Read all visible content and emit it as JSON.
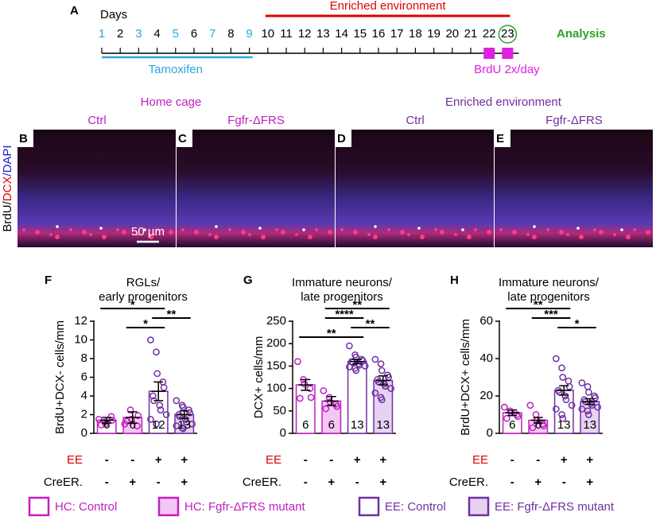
{
  "timeline": {
    "letter": "A",
    "days_label": "Days",
    "days": [
      1,
      2,
      3,
      4,
      5,
      6,
      7,
      8,
      9,
      10,
      11,
      12,
      13,
      14,
      15,
      16,
      17,
      18,
      19,
      20,
      21,
      22,
      23
    ],
    "day_colors": [
      "#29a8e0",
      "#000",
      "#29a8e0",
      "#000",
      "#29a8e0",
      "#000",
      "#29a8e0",
      "#000",
      "#29a8e0",
      "#000",
      "#000",
      "#000",
      "#000",
      "#000",
      "#000",
      "#000",
      "#000",
      "#000",
      "#000",
      "#000",
      "#000",
      "#000",
      "#000"
    ],
    "enriched_label": "Enriched environment",
    "tamoxifen_label": "Tamoxifen",
    "brdu_label": "BrdU 2x/day",
    "analysis_label": "Analysis"
  },
  "images": {
    "groups": [
      {
        "label": "Home cage",
        "color": "#c020c0"
      },
      {
        "label": "Enriched environment",
        "color": "#7030a0"
      }
    ],
    "panels": [
      {
        "letter": "B",
        "label": "Ctrl",
        "color": "#c020c0"
      },
      {
        "letter": "C",
        "label": "Fgfr-ΔFRS",
        "color": "#c020c0"
      },
      {
        "letter": "D",
        "label": "Ctrl",
        "color": "#7030a0"
      },
      {
        "letter": "E",
        "label": "Fgfr-ΔFRS",
        "color": "#7030a0"
      }
    ],
    "stain": [
      {
        "text": "BrdU/",
        "color": "#000"
      },
      {
        "text": "DCX",
        "color": "#e00000"
      },
      {
        "text": "/DAPI",
        "color": "#1a1ad0"
      }
    ],
    "scale_bar": "50 µm"
  },
  "chart_data": [
    {
      "type": "bar",
      "letter": "F",
      "title": [
        "RGLs/",
        "early progenitors"
      ],
      "y_label": "BrdU+DCX- cells/mm",
      "ylim": [
        0,
        12
      ],
      "yticks": [
        0,
        2,
        4,
        6,
        8,
        10,
        12
      ],
      "values": [
        1.4,
        1.7,
        4.5,
        2.0
      ],
      "errors": [
        0.3,
        0.6,
        1.0,
        0.4
      ],
      "points": [
        [
          1.5,
          1.2,
          1.0,
          1.8,
          1.4,
          0.9
        ],
        [
          1.0,
          2.5,
          1.5,
          0.8,
          1.9,
          1.3
        ],
        [
          10.0,
          8.7,
          6.4,
          5.5,
          4.9,
          4.0,
          3.5,
          3.0,
          2.5,
          2.0,
          1.5,
          1.0
        ],
        [
          3.5,
          3.0,
          2.8,
          2.5,
          2.2,
          2.0,
          1.8,
          1.5,
          1.2,
          1.0,
          0.8,
          0.6,
          0.5
        ]
      ],
      "n_labels": [
        "6",
        "6",
        "12",
        "13"
      ],
      "significance": [
        {
          "pair": [
            0,
            2
          ],
          "label": "*"
        },
        {
          "pair": [
            2,
            3
          ],
          "label": "**"
        },
        {
          "pair": [
            1,
            2
          ],
          "label": "*"
        }
      ],
      "conditions": [
        {
          "label": "EE",
          "color": "#e00000",
          "marks": [
            "-",
            "-",
            "+",
            "+"
          ]
        },
        {
          "label": "CreER.",
          "color": "#000",
          "marks": [
            "-",
            "+",
            "-",
            "+"
          ]
        }
      ]
    },
    {
      "type": "bar",
      "letter": "G",
      "title": [
        "Immature neurons/",
        "late progenitors"
      ],
      "y_label": "DCX+ cells/mm",
      "ylim": [
        0,
        250
      ],
      "yticks": [
        0,
        50,
        100,
        150,
        200,
        250
      ],
      "values": [
        108,
        72,
        160,
        118
      ],
      "errors": [
        12,
        10,
        5,
        10
      ],
      "points": [
        [
          160,
          120,
          110,
          100,
          80,
          78
        ],
        [
          95,
          80,
          70,
          65,
          60,
          55
        ],
        [
          195,
          175,
          170,
          165,
          162,
          160,
          158,
          155,
          152,
          150,
          148,
          145,
          140
        ],
        [
          165,
          155,
          140,
          130,
          125,
          120,
          115,
          110,
          105,
          100,
          90,
          80,
          75
        ]
      ],
      "n_labels": [
        "6",
        "6",
        "13",
        "13"
      ],
      "significance": [
        {
          "pair": [
            1,
            3
          ],
          "label": "**"
        },
        {
          "pair": [
            1,
            2
          ],
          "label": "****"
        },
        {
          "pair": [
            2,
            3
          ],
          "label": "**"
        },
        {
          "pair": [
            0,
            2
          ],
          "label": "**"
        }
      ],
      "conditions": [
        {
          "label": "EE",
          "color": "#e00000",
          "marks": [
            "-",
            "-",
            "+",
            "+"
          ]
        },
        {
          "label": "CreER.",
          "color": "#000",
          "marks": [
            "-",
            "+",
            "-",
            "+"
          ]
        }
      ]
    },
    {
      "type": "bar",
      "letter": "H",
      "title": [
        "Immature neurons/",
        "late progenitors"
      ],
      "y_label": "BrdU+DCX+ cells/mm",
      "ylim": [
        0,
        60
      ],
      "yticks": [
        0,
        20,
        40,
        60
      ],
      "values": [
        11,
        7,
        23,
        17
      ],
      "errors": [
        1.5,
        1.5,
        2.5,
        1.5
      ],
      "points": [
        [
          14,
          12,
          11,
          10,
          9,
          8
        ],
        [
          15,
          10,
          7,
          5,
          4,
          3
        ],
        [
          40,
          35,
          30,
          28,
          25,
          23,
          22,
          20,
          18,
          15,
          13,
          10,
          8
        ],
        [
          27,
          25,
          22,
          20,
          19,
          18,
          17,
          16,
          15,
          14,
          13,
          12,
          10
        ]
      ],
      "n_labels": [
        "6",
        "6",
        "13",
        "13"
      ],
      "significance": [
        {
          "pair": [
            0,
            2
          ],
          "label": "**"
        },
        {
          "pair": [
            1,
            2
          ],
          "label": "***"
        },
        {
          "pair": [
            2,
            3
          ],
          "label": "*"
        }
      ],
      "conditions": [
        {
          "label": "EE",
          "color": "#e00000",
          "marks": [
            "-",
            "-",
            "+",
            "+"
          ]
        },
        {
          "label": "CreER.",
          "color": "#000",
          "marks": [
            "-",
            "+",
            "-",
            "+"
          ]
        }
      ]
    }
  ],
  "legend": [
    {
      "label": "HC: Control",
      "fill": "#ffffff",
      "stroke": "#c020c0"
    },
    {
      "label": "HC: Fgfr-ΔFRS mutant",
      "fill": "#f4c6f4",
      "stroke": "#c020c0"
    },
    {
      "label": "EE: Control",
      "fill": "#ffffff",
      "stroke": "#7030a0"
    },
    {
      "label": "EE: Fgfr-ΔFRS mutant",
      "fill": "#e6d2f2",
      "stroke": "#7030a0"
    }
  ]
}
